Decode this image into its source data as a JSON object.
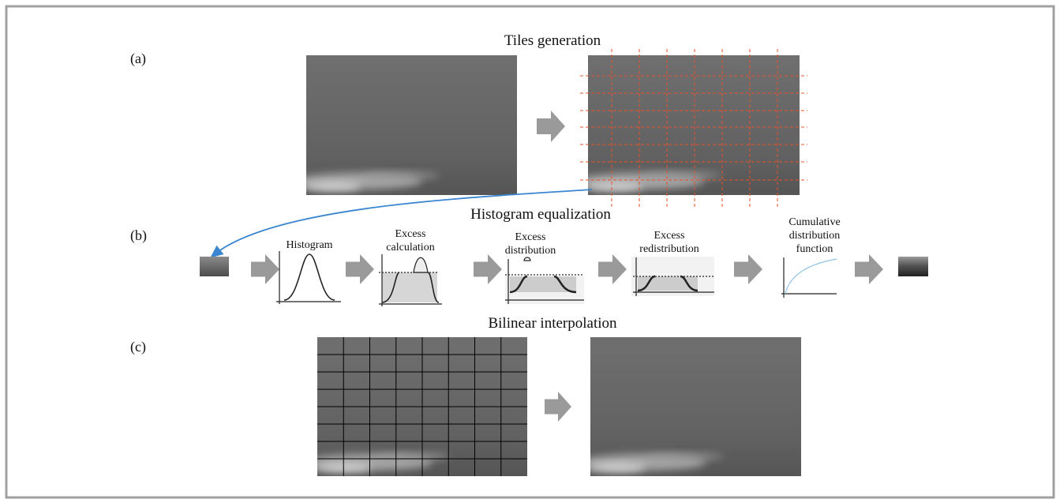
{
  "panels": [
    {
      "label": "(a)",
      "title": "Tiles generation"
    },
    {
      "label": "(b)",
      "title": "Histogram equalization",
      "steps": [
        [
          "Histogram"
        ],
        [
          "Excess",
          "calculation"
        ],
        [
          "Excess",
          "distribution"
        ],
        [
          "Excess",
          "redistribution"
        ],
        [
          "Cumulative",
          "distribution",
          "function"
        ]
      ]
    },
    {
      "label": "(c)",
      "title": "Bilinear interpolation"
    }
  ]
}
